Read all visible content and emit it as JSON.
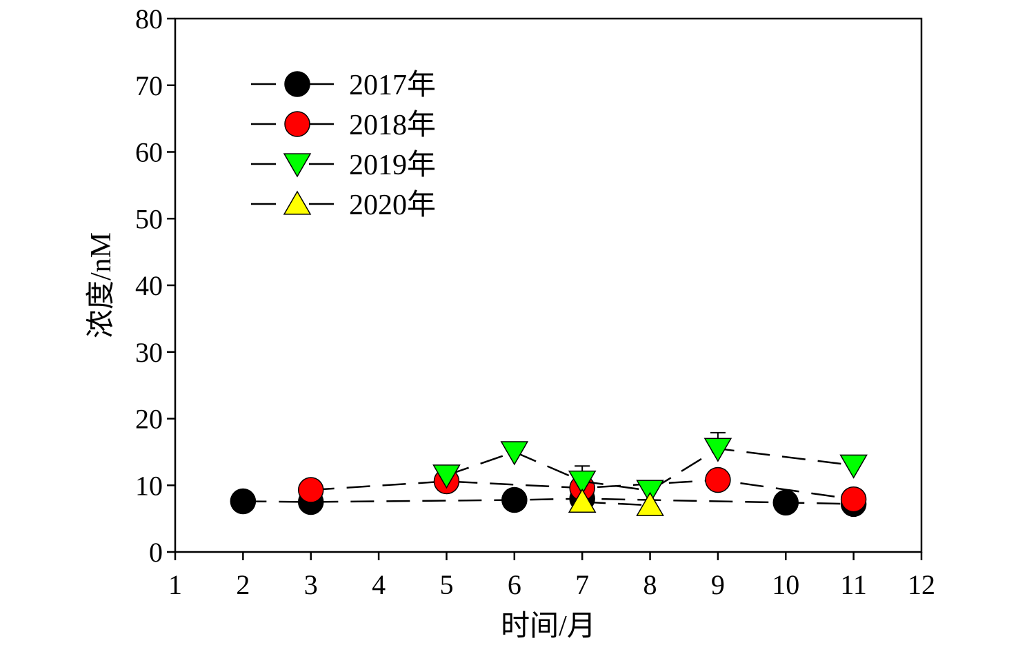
{
  "chart_data": {
    "type": "line",
    "xlabel": "时间/月",
    "ylabel": "浓度/nM",
    "xlim": [
      1,
      12
    ],
    "ylim": [
      0,
      80
    ],
    "xticks": [
      1,
      2,
      3,
      4,
      5,
      6,
      7,
      8,
      9,
      10,
      11,
      12
    ],
    "yticks": [
      0,
      10,
      20,
      30,
      40,
      50,
      60,
      70,
      80
    ],
    "grid": false,
    "legend": "top-left",
    "series": [
      {
        "name": "2017年",
        "marker": "circle",
        "color": "#000000",
        "x": [
          2,
          3,
          6,
          7,
          10,
          11
        ],
        "y": [
          7.6,
          7.5,
          7.8,
          8.0,
          7.4,
          7.2
        ],
        "err": [
          0,
          0,
          0,
          0,
          0,
          0
        ]
      },
      {
        "name": "2018年",
        "marker": "circle",
        "color": "#ff0000",
        "x": [
          3,
          5,
          7,
          9,
          11
        ],
        "y": [
          9.3,
          10.6,
          9.6,
          10.8,
          7.9
        ],
        "err": [
          0,
          0,
          0,
          1.3,
          0
        ]
      },
      {
        "name": "2019年",
        "marker": "triangle-down",
        "color": "#00ff00",
        "x": [
          5,
          6,
          7,
          8,
          9,
          11
        ],
        "y": [
          11.5,
          15.0,
          10.6,
          9.2,
          15.5,
          13.0
        ],
        "err": [
          0,
          0.8,
          2.3,
          1.0,
          2.4,
          0
        ]
      },
      {
        "name": "2020年",
        "marker": "triangle-up",
        "color": "#ffff00",
        "x": [
          7,
          8
        ],
        "y": [
          7.5,
          7.0
        ],
        "err": [
          0,
          0
        ]
      }
    ]
  }
}
